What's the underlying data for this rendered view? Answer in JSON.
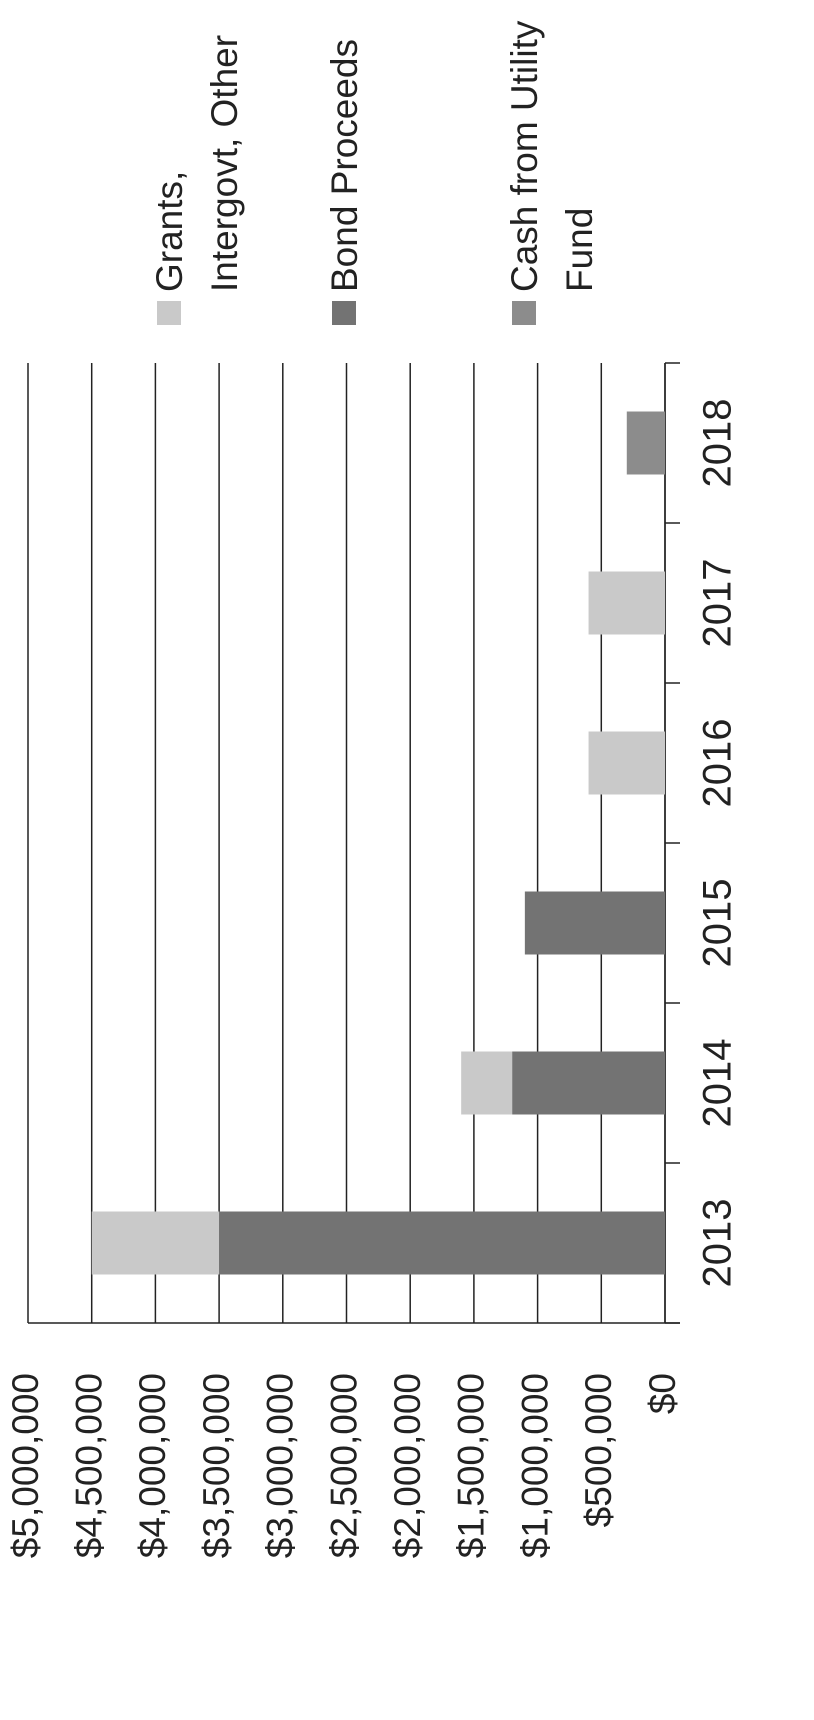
{
  "chart_data": {
    "type": "stacked_bar",
    "categories": [
      "2013",
      "2014",
      "2015",
      "2016",
      "2017",
      "2018"
    ],
    "series": [
      {
        "name": "Cash from Utility Fund",
        "color": "#8c8c8c",
        "values": [
          0,
          0,
          0,
          0,
          0,
          300000
        ]
      },
      {
        "name": "Bond Proceeds",
        "color": "#737373",
        "values": [
          3500000,
          1200000,
          1100000,
          0,
          0,
          0
        ]
      },
      {
        "name": "Grants, Intergovt, Other",
        "color": "#c9c9c9",
        "values": [
          1000000,
          400000,
          0,
          600000,
          600000,
          0
        ]
      }
    ],
    "ylim": [
      0,
      5000000
    ],
    "yticks": [
      {
        "value": 0,
        "label": "$0"
      },
      {
        "value": 500000,
        "label": "$500,000"
      },
      {
        "value": 1000000,
        "label": "$1,000,000"
      },
      {
        "value": 1500000,
        "label": "$1,500,000"
      },
      {
        "value": 2000000,
        "label": "$2,000,000"
      },
      {
        "value": 2500000,
        "label": "$2,500,000"
      },
      {
        "value": 3000000,
        "label": "$3,000,000"
      },
      {
        "value": 3500000,
        "label": "$3,500,000"
      },
      {
        "value": 4000000,
        "label": "$4,000,000"
      },
      {
        "value": 4500000,
        "label": "$4,500,000"
      },
      {
        "value": 5000000,
        "label": "$5,000,000"
      }
    ],
    "grid": true,
    "legend": "right"
  }
}
